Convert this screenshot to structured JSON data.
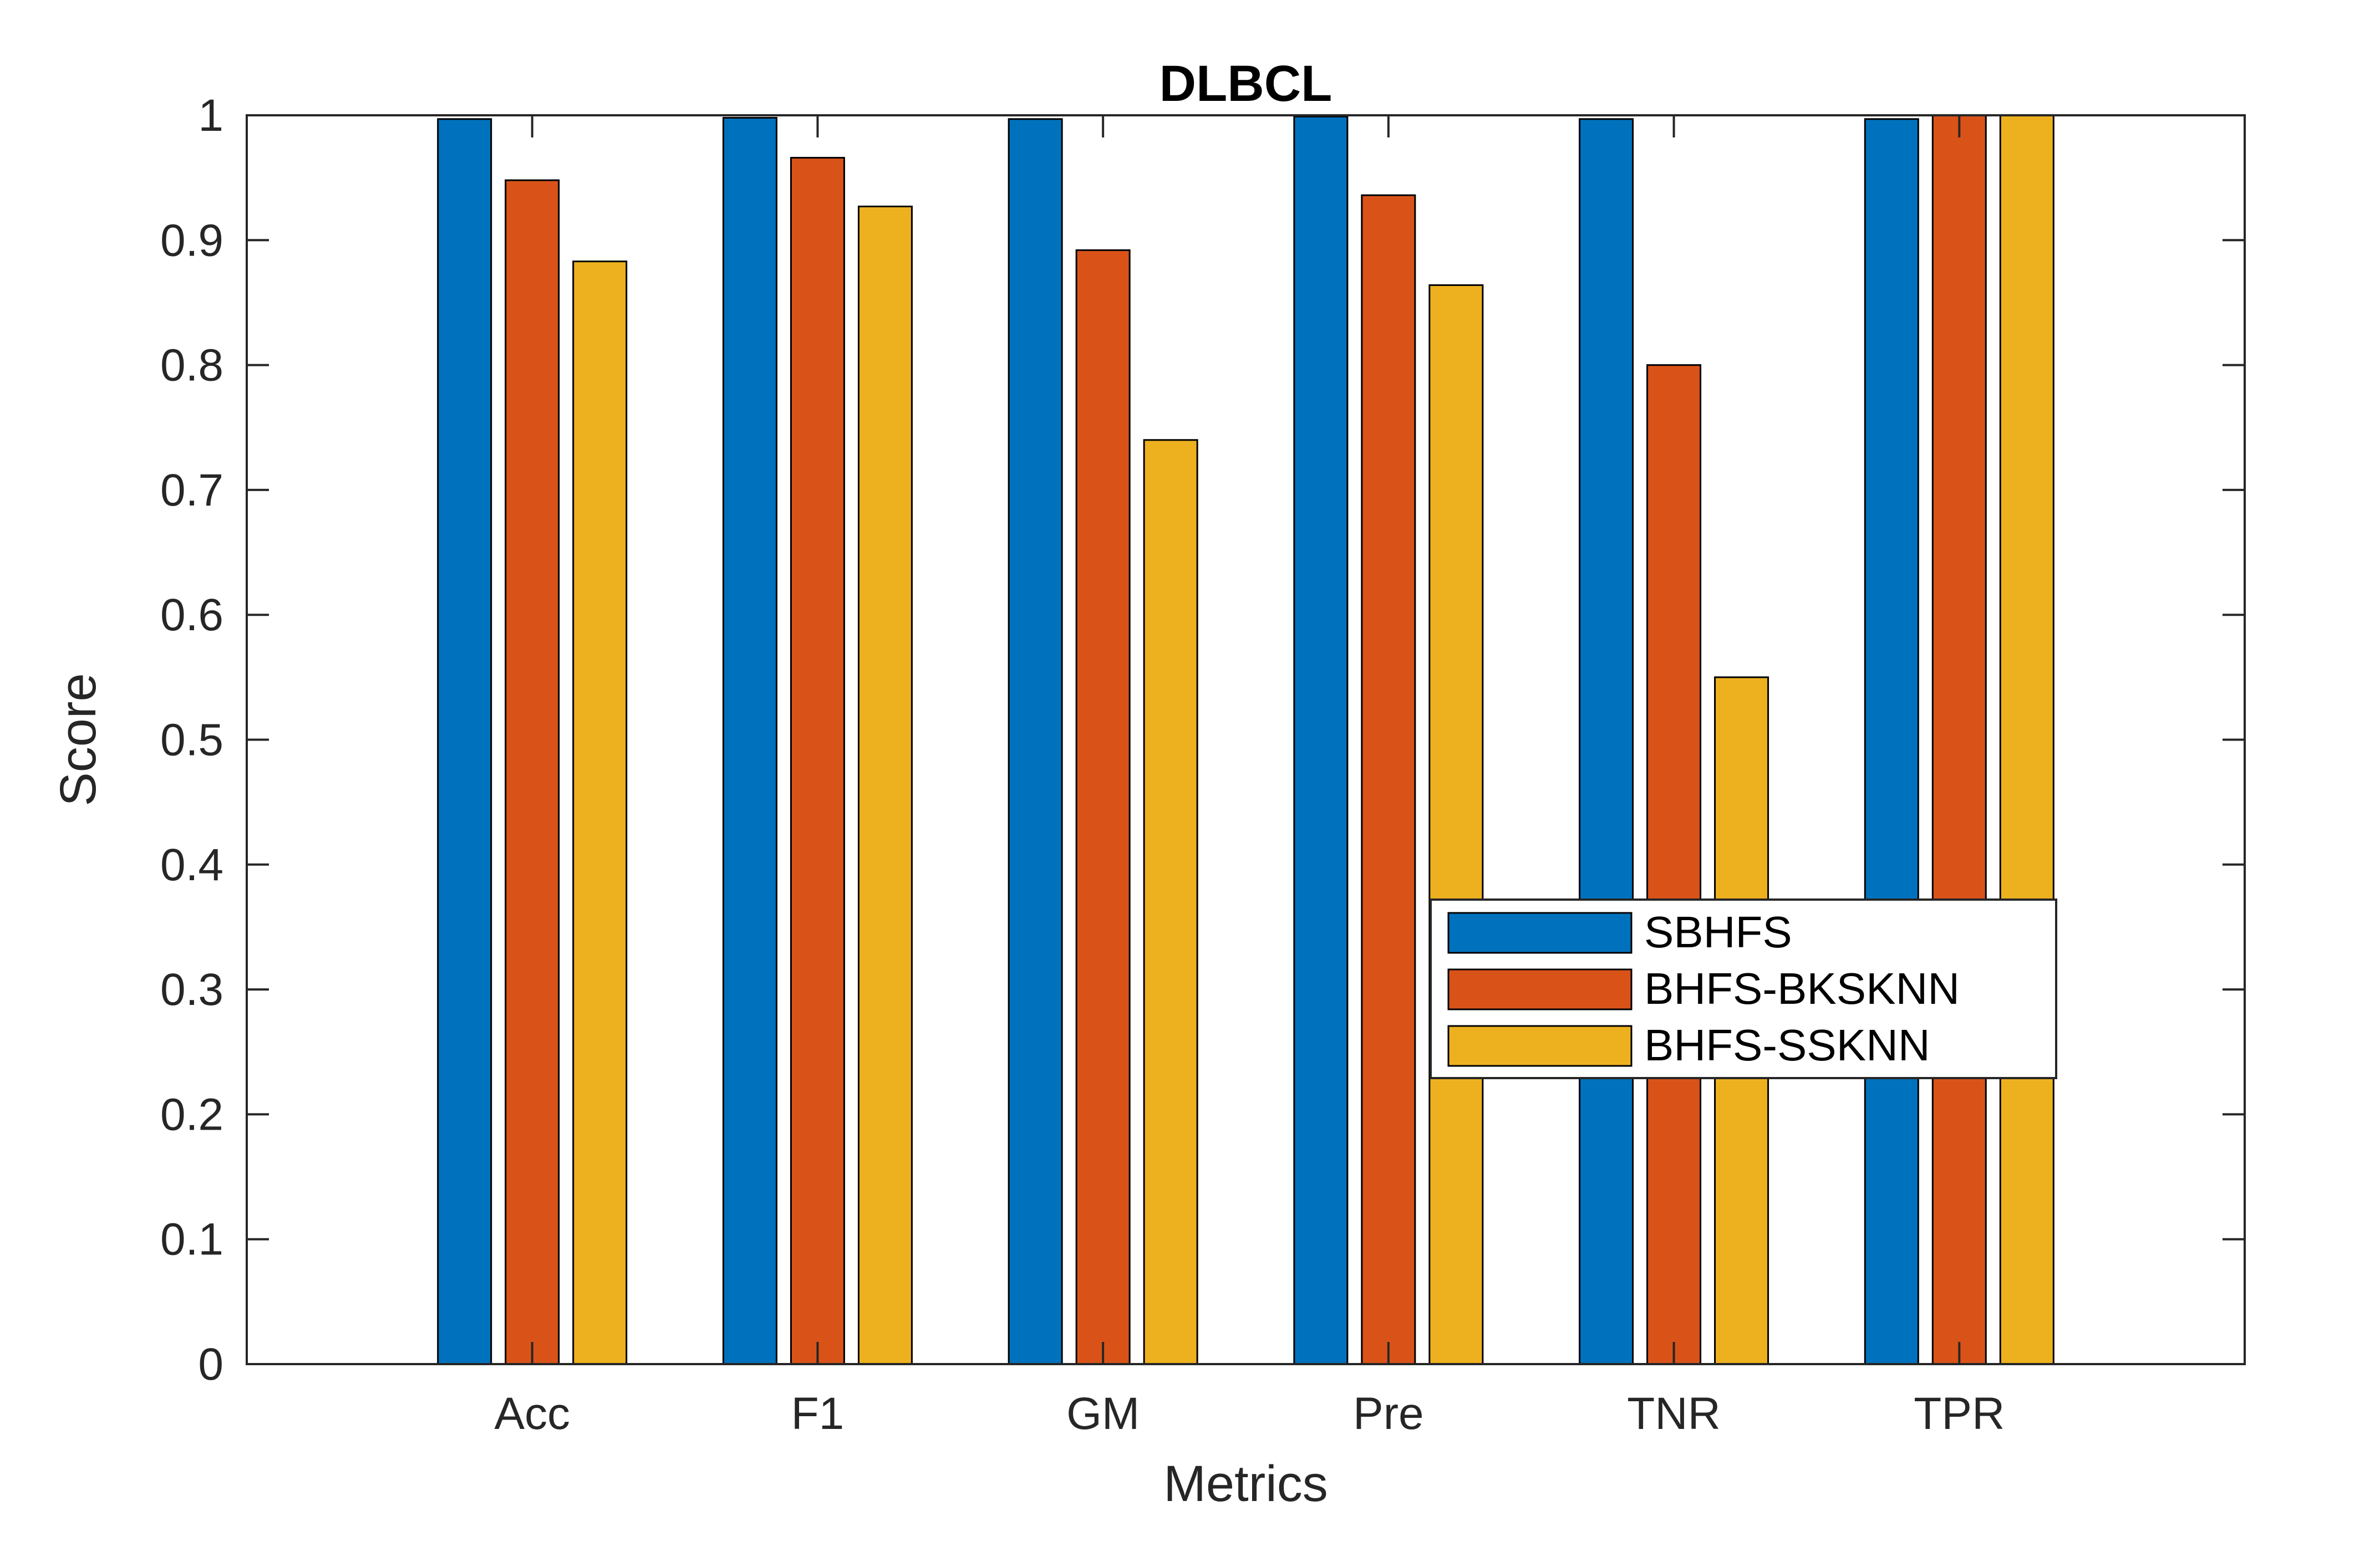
{
  "chart_data": {
    "type": "bar",
    "title": "DLBCL",
    "xlabel": "Metrics",
    "ylabel": "Score",
    "ylim": [
      0,
      1
    ],
    "yticks": [
      0,
      0.1,
      0.2,
      0.3,
      0.4,
      0.5,
      0.6,
      0.7,
      0.8,
      0.9,
      1
    ],
    "ytick_labels": [
      "0",
      "0.1",
      "0.2",
      "0.3",
      "0.4",
      "0.5",
      "0.6",
      "0.7",
      "0.8",
      "0.9",
      "1"
    ],
    "grid": false,
    "legend_position": "lower-right",
    "categories": [
      "Acc",
      "F1",
      "GM",
      "Pre",
      "TNR",
      "TPR"
    ],
    "series": [
      {
        "name": "SBHFS",
        "color": "#0072BD",
        "values": [
          0.997,
          0.998,
          0.997,
          0.999,
          0.997,
          0.997
        ]
      },
      {
        "name": "BHFS-BKSKNN",
        "color": "#D95319",
        "values": [
          0.948,
          0.966,
          0.892,
          0.936,
          0.8,
          1.0
        ]
      },
      {
        "name": "BHFS-SSKNN",
        "color": "#EDB120",
        "values": [
          0.883,
          0.927,
          0.74,
          0.864,
          0.55,
          1.0
        ]
      }
    ]
  }
}
